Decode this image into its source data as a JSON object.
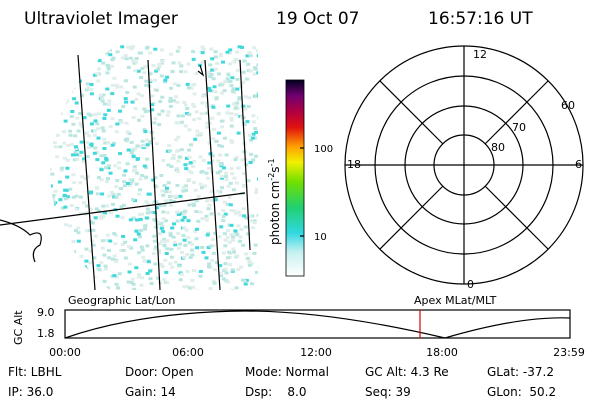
{
  "header": {
    "title": "Ultraviolet Imager",
    "date": "19 Oct 07",
    "time": "16:57:16 UT"
  },
  "colorbar": {
    "labels": [
      "100",
      "10"
    ],
    "unit": [
      "photon cm",
      "-2",
      "s",
      "-1"
    ]
  },
  "polar_plot": {
    "mlt_labels": [
      "12",
      "18",
      "6",
      "0"
    ],
    "lat_labels": [
      "60",
      "70",
      "80"
    ]
  },
  "altitude_plot": {
    "left_title": "Geographic Lat/Lon",
    "right_title": "Apex MLat/MLT",
    "axis_label": "GC Alt",
    "y_labels": [
      "9.0",
      "1.8"
    ],
    "x_labels": [
      "00:00",
      "06:00",
      "12:00",
      "18:00",
      "23:59"
    ]
  },
  "footer": {
    "rows": [
      [
        "Flt: LBHL",
        "Door: Open",
        "Mode: Normal",
        "GC Alt: 4.3 Re",
        "GLat: -37.2"
      ],
      [
        "IP: 36.0",
        "Gain: 14",
        "Dsp:    8.0",
        "Seq: 39",
        "GLon:  50.2"
      ]
    ]
  }
}
